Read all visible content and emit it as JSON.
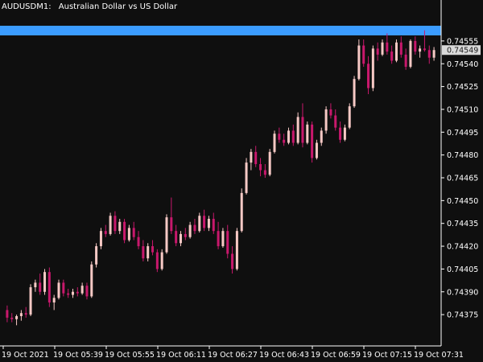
{
  "window": {
    "symbol": "AUDUSD",
    "timeframe": "M1:",
    "description": "Australian Dollar vs US Dollar"
  },
  "colors": {
    "background": "#0f0f0f",
    "text": "#ffffff",
    "axis": "#ffffff",
    "bull_candle": "#f7c9c5",
    "bear_candle": "#c8186c",
    "wick_green": "#2fbf4f",
    "highlight_bar": "#3b9cff",
    "current_price_badge": "#d9d9d9"
  },
  "price_axis": {
    "ticks": [
      "0.74555",
      "0.74540",
      "0.74525",
      "0.74510",
      "0.74495",
      "0.74480",
      "0.74465",
      "0.74450",
      "0.74435",
      "0.74420",
      "0.74405",
      "0.74390",
      "0.74375"
    ],
    "current_price": "0.74549"
  },
  "time_axis": {
    "ticks": [
      "19 Oct 2021",
      "19 Oct 05:39",
      "19 Oct 05:55",
      "19 Oct 06:11",
      "19 Oct 06:27",
      "19 Oct 06:43",
      "19 Oct 06:59",
      "19 Oct 07:15",
      "19 Oct 07:31"
    ]
  },
  "chart_data": {
    "type": "candlestick",
    "title": "AUDUSD, M1: Australian Dollar vs US Dollar",
    "ylim": [
      0.74365,
      0.74565
    ],
    "highlight_band": [
      0.74546,
      0.74552
    ],
    "candles": [
      [
        0.74378,
        0.74381,
        0.7437,
        0.74373
      ],
      [
        0.74373,
        0.74376,
        0.7437,
        0.74372
      ],
      [
        0.74372,
        0.74375,
        0.74368,
        0.74374
      ],
      [
        0.74374,
        0.74378,
        0.74371,
        0.74376
      ],
      [
        0.74376,
        0.7438,
        0.74373,
        0.74375
      ],
      [
        0.74375,
        0.74395,
        0.74374,
        0.74393
      ],
      [
        0.74393,
        0.74398,
        0.7439,
        0.74396
      ],
      [
        0.74396,
        0.74402,
        0.74388,
        0.7439
      ],
      [
        0.7439,
        0.74405,
        0.74388,
        0.74403
      ],
      [
        0.74403,
        0.74406,
        0.7438,
        0.74383
      ],
      [
        0.74383,
        0.74388,
        0.74378,
        0.74386
      ],
      [
        0.74386,
        0.74398,
        0.74385,
        0.74396
      ],
      [
        0.74396,
        0.74398,
        0.74387,
        0.74389
      ],
      [
        0.74389,
        0.74392,
        0.74386,
        0.74388
      ],
      [
        0.74388,
        0.74392,
        0.74386,
        0.7439
      ],
      [
        0.7439,
        0.74393,
        0.74387,
        0.74389
      ],
      [
        0.74389,
        0.74396,
        0.74388,
        0.74394
      ],
      [
        0.74394,
        0.74396,
        0.74385,
        0.74387
      ],
      [
        0.74387,
        0.7441,
        0.74386,
        0.74408
      ],
      [
        0.74408,
        0.74422,
        0.74406,
        0.7442
      ],
      [
        0.7442,
        0.74432,
        0.74418,
        0.7443
      ],
      [
        0.7443,
        0.74434,
        0.74426,
        0.74428
      ],
      [
        0.74428,
        0.74442,
        0.74427,
        0.7444
      ],
      [
        0.7444,
        0.74443,
        0.74428,
        0.7443
      ],
      [
        0.7443,
        0.74438,
        0.74428,
        0.74436
      ],
      [
        0.74436,
        0.74438,
        0.74422,
        0.74424
      ],
      [
        0.74424,
        0.74434,
        0.74423,
        0.74432
      ],
      [
        0.74432,
        0.74436,
        0.74424,
        0.74426
      ],
      [
        0.74426,
        0.7443,
        0.74418,
        0.7442
      ],
      [
        0.7442,
        0.74424,
        0.7441,
        0.74412
      ],
      [
        0.74412,
        0.74422,
        0.7441,
        0.7442
      ],
      [
        0.7442,
        0.74424,
        0.74414,
        0.74416
      ],
      [
        0.74416,
        0.74418,
        0.74403,
        0.74405
      ],
      [
        0.74405,
        0.74418,
        0.74404,
        0.74416
      ],
      [
        0.74416,
        0.74441,
        0.74415,
        0.74439
      ],
      [
        0.74439,
        0.74452,
        0.74428,
        0.7443
      ],
      [
        0.7443,
        0.74434,
        0.7442,
        0.74422
      ],
      [
        0.74422,
        0.7443,
        0.7442,
        0.74428
      ],
      [
        0.74428,
        0.74432,
        0.74424,
        0.74426
      ],
      [
        0.74426,
        0.74436,
        0.74425,
        0.74434
      ],
      [
        0.74434,
        0.74438,
        0.74428,
        0.7443
      ],
      [
        0.7443,
        0.74442,
        0.74429,
        0.7444
      ],
      [
        0.7444,
        0.74444,
        0.7443,
        0.74432
      ],
      [
        0.74432,
        0.7444,
        0.7443,
        0.74438
      ],
      [
        0.74438,
        0.74442,
        0.74428,
        0.7443
      ],
      [
        0.7443,
        0.74436,
        0.74418,
        0.7442
      ],
      [
        0.7442,
        0.74432,
        0.74419,
        0.7443
      ],
      [
        0.7443,
        0.74434,
        0.74412,
        0.74415
      ],
      [
        0.74415,
        0.7442,
        0.74402,
        0.74405
      ],
      [
        0.74405,
        0.74432,
        0.74404,
        0.7443
      ],
      [
        0.7443,
        0.74458,
        0.74429,
        0.74455
      ],
      [
        0.74455,
        0.74478,
        0.74454,
        0.74475
      ],
      [
        0.74475,
        0.74484,
        0.7447,
        0.74482
      ],
      [
        0.74482,
        0.74486,
        0.74472,
        0.74474
      ],
      [
        0.74474,
        0.74478,
        0.74466,
        0.7447
      ],
      [
        0.7447,
        0.74474,
        0.74465,
        0.74467
      ],
      [
        0.74467,
        0.74484,
        0.74466,
        0.74482
      ],
      [
        0.74482,
        0.74496,
        0.74481,
        0.74494
      ],
      [
        0.74494,
        0.74498,
        0.74488,
        0.7449
      ],
      [
        0.7449,
        0.74494,
        0.74486,
        0.74488
      ],
      [
        0.74488,
        0.74498,
        0.74487,
        0.74496
      ],
      [
        0.74496,
        0.745,
        0.74486,
        0.74488
      ],
      [
        0.74488,
        0.74508,
        0.74487,
        0.74505
      ],
      [
        0.74505,
        0.74514,
        0.74485,
        0.74488
      ],
      [
        0.74488,
        0.74502,
        0.74487,
        0.745
      ],
      [
        0.745,
        0.74502,
        0.74475,
        0.74478
      ],
      [
        0.74478,
        0.7449,
        0.74477,
        0.74488
      ],
      [
        0.74488,
        0.74498,
        0.74486,
        0.74496
      ],
      [
        0.74496,
        0.74512,
        0.74494,
        0.7451
      ],
      [
        0.7451,
        0.74514,
        0.74504,
        0.74506
      ],
      [
        0.74506,
        0.7451,
        0.74496,
        0.74498
      ],
      [
        0.74498,
        0.74502,
        0.74488,
        0.7449
      ],
      [
        0.7449,
        0.745,
        0.74489,
        0.74498
      ],
      [
        0.74498,
        0.74514,
        0.74497,
        0.74512
      ],
      [
        0.74512,
        0.74532,
        0.74511,
        0.7453
      ],
      [
        0.7453,
        0.74556,
        0.74529,
        0.74552
      ],
      [
        0.74552,
        0.74556,
        0.74538,
        0.7454
      ],
      [
        0.7454,
        0.74545,
        0.7452,
        0.74524
      ],
      [
        0.74524,
        0.74552,
        0.74522,
        0.7455
      ],
      [
        0.7455,
        0.74554,
        0.74542,
        0.74546
      ],
      [
        0.74546,
        0.74556,
        0.74545,
        0.74554
      ],
      [
        0.74554,
        0.7456,
        0.74546,
        0.74548
      ],
      [
        0.74548,
        0.74552,
        0.7454,
        0.74542
      ],
      [
        0.74542,
        0.74556,
        0.74541,
        0.74554
      ],
      [
        0.74554,
        0.74558,
        0.74544,
        0.74546
      ],
      [
        0.74546,
        0.7455,
        0.74536,
        0.74538
      ],
      [
        0.74538,
        0.74556,
        0.74537,
        0.74555
      ],
      [
        0.74555,
        0.74558,
        0.74546,
        0.74548
      ],
      [
        0.74548,
        0.74552,
        0.74544,
        0.7455
      ],
      [
        0.7455,
        0.74562,
        0.74548,
        0.74549
      ],
      [
        0.74549,
        0.74552,
        0.7454,
        0.74544
      ],
      [
        0.74544,
        0.74551,
        0.74542,
        0.74549
      ]
    ]
  }
}
